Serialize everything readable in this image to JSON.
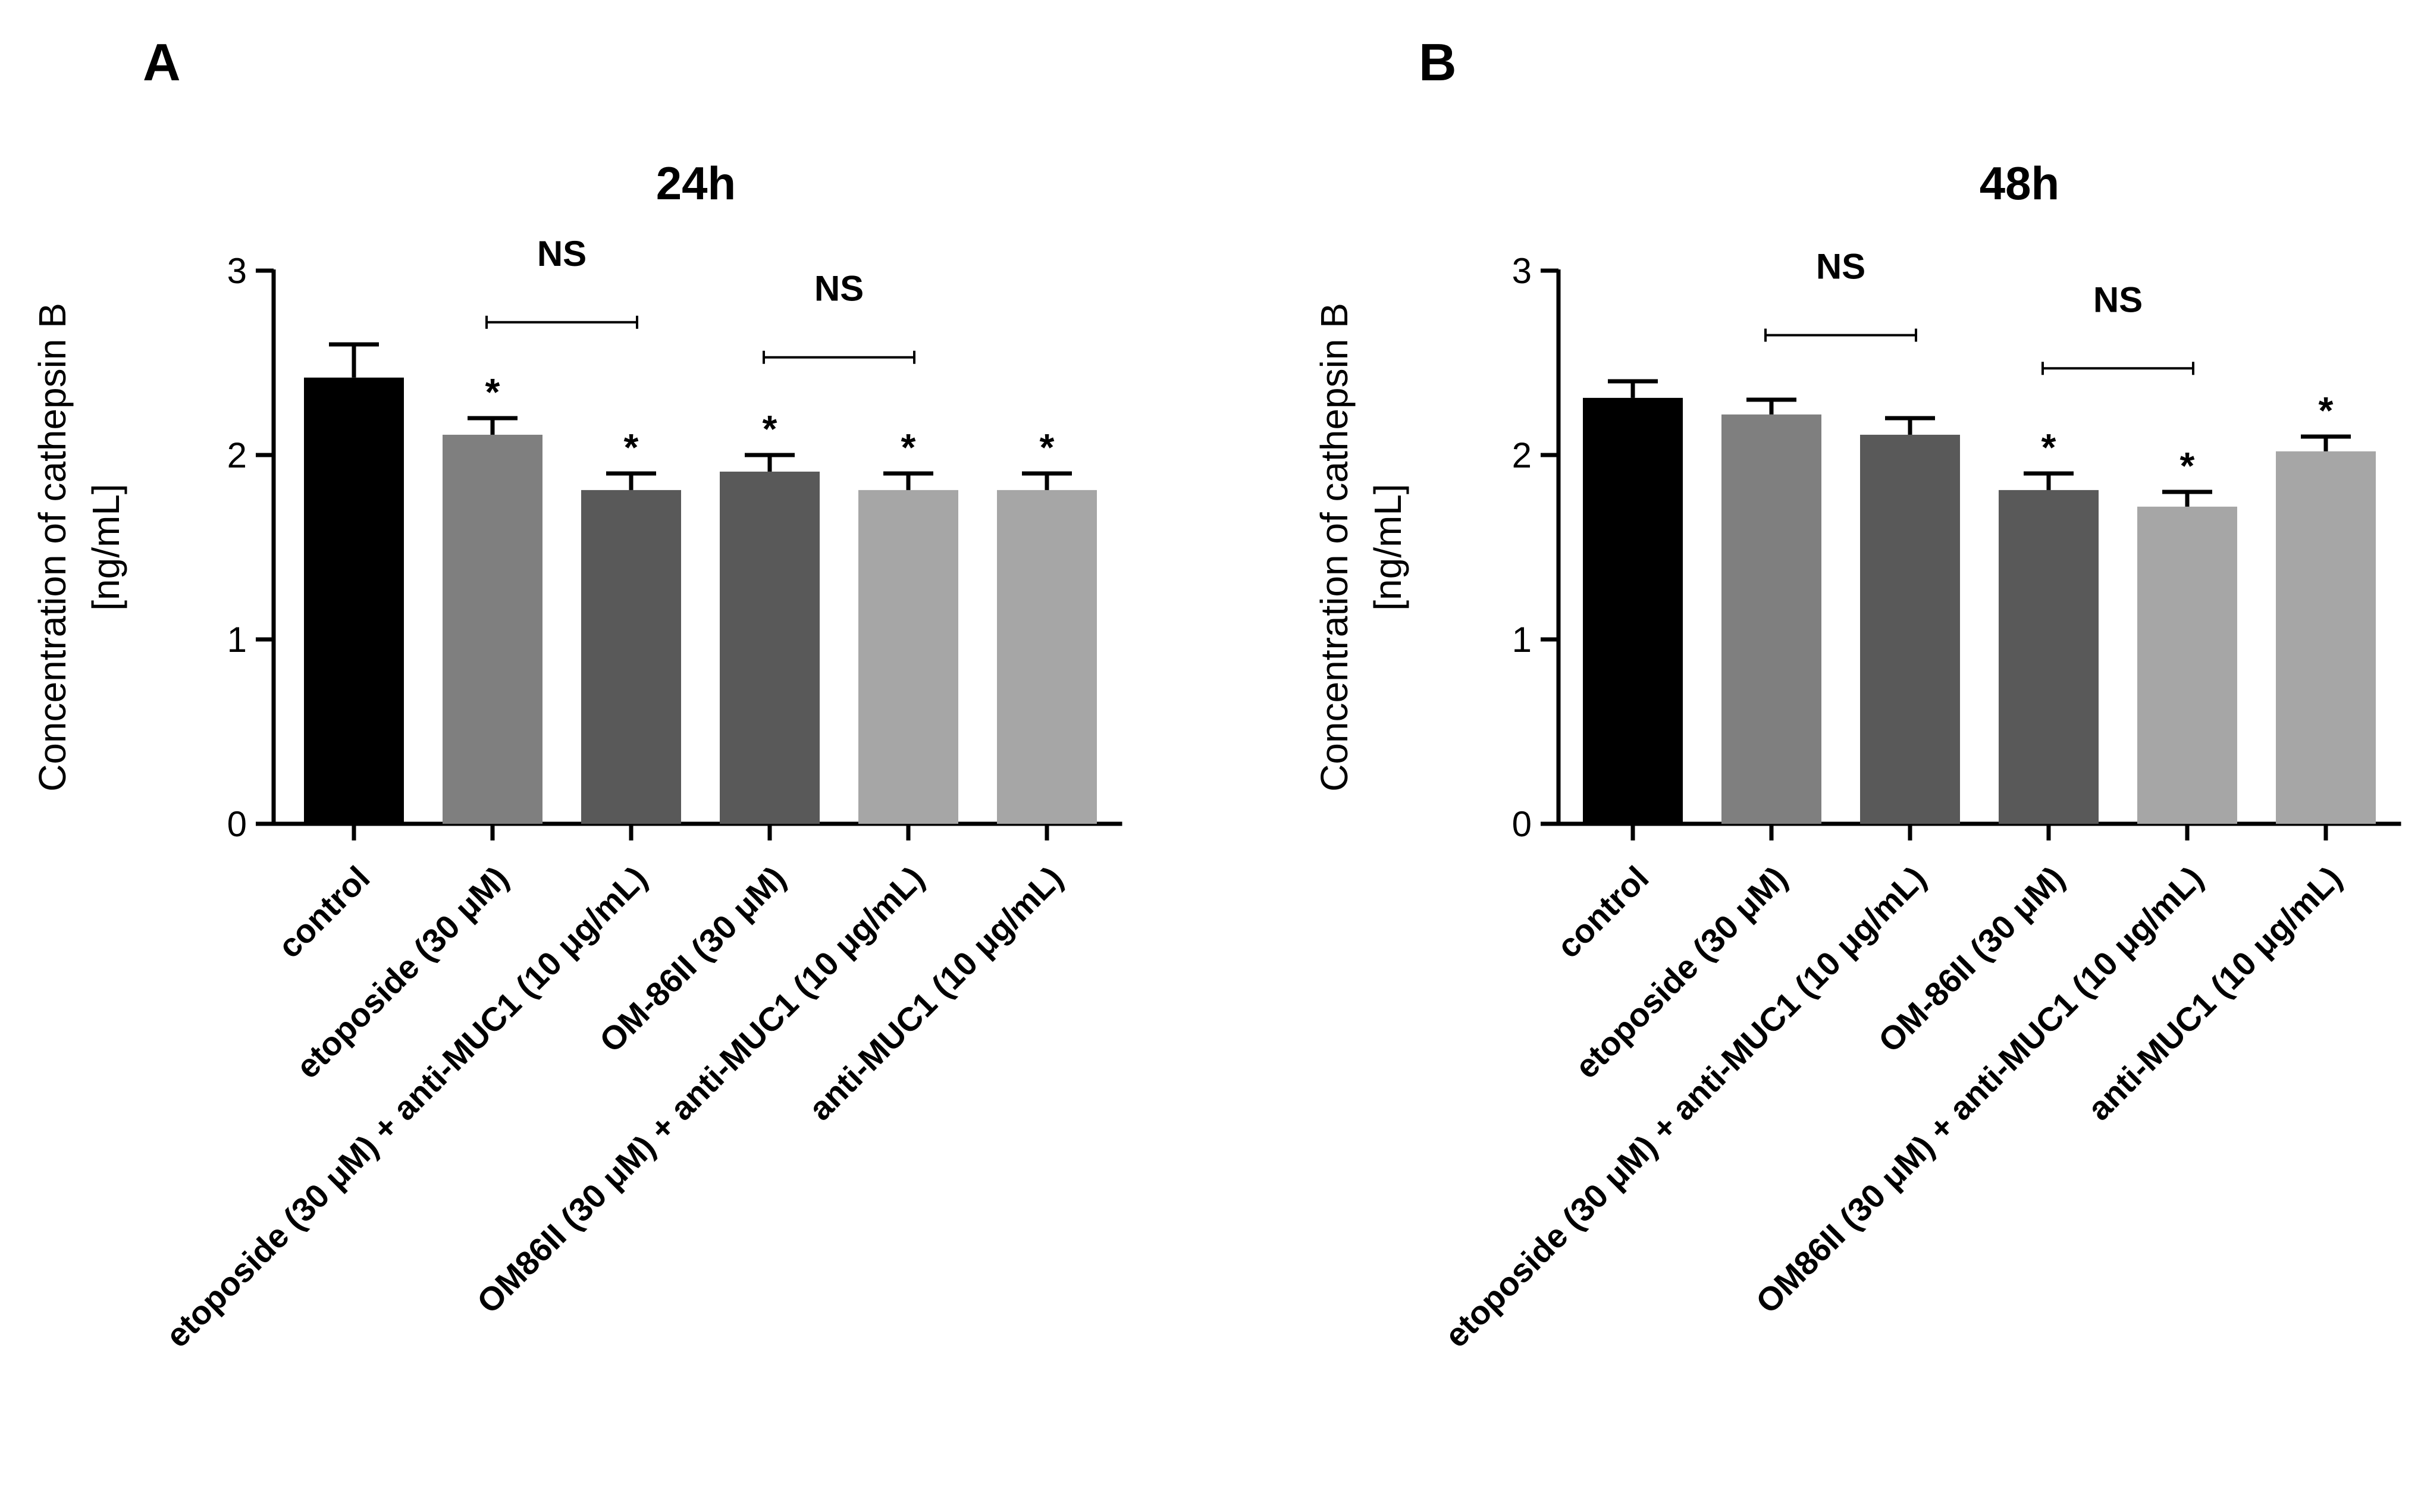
{
  "panels": [
    {
      "letter": "A"
    },
    {
      "letter": "B"
    }
  ],
  "chart_data": [
    {
      "type": "bar",
      "title": "24h",
      "xlabel": "",
      "ylabel": "Concentration of cathepsin B\n[ng/mL]",
      "ylabel_lines": [
        "Concentration of cathepsin B",
        "[ng/mL]"
      ],
      "ylim": [
        0,
        3
      ],
      "yticks": [
        "0",
        "1",
        "2",
        "3"
      ],
      "ytick_values": [
        0,
        1,
        2,
        3
      ],
      "grid": false,
      "legend": "none",
      "categories": [
        "control",
        "etoposide (30  μM)",
        "etoposide (30  μM) + anti-MUC1 (10  μg/mL)",
        "OM-86II (30  μM)",
        "OM86II (30  μM) + anti-MUC1 (10  μg/mL)",
        "anti-MUC1 (10  μg/mL)"
      ],
      "values": [
        2.42,
        2.11,
        1.81,
        1.91,
        1.81,
        1.81
      ],
      "errors": [
        0.18,
        0.09,
        0.09,
        0.09,
        0.09,
        0.09
      ],
      "colors": [
        "#000000",
        "#7f7f7f",
        "#595959",
        "#595959",
        "#a6a6a6",
        "#a6a6a6"
      ],
      "significance": [
        "",
        "*",
        "*",
        "*",
        "*",
        "*"
      ],
      "brackets": [
        {
          "from": 1,
          "to": 2,
          "label": "NS",
          "level": 2.72
        },
        {
          "from": 3,
          "to": 4,
          "label": "NS",
          "level": 2.53
        }
      ]
    },
    {
      "type": "bar",
      "title": "48h",
      "xlabel": "",
      "ylabel": "Concentration of cathepsin B\n[ng/mL]",
      "ylabel_lines": [
        "Concentration of cathepsin B",
        "[ng/mL]"
      ],
      "ylim": [
        0,
        3
      ],
      "yticks": [
        "0",
        "1",
        "2",
        "3"
      ],
      "ytick_values": [
        0,
        1,
        2,
        3
      ],
      "grid": false,
      "legend": "none",
      "categories": [
        "control",
        "etoposide (30  μM)",
        "etoposide (30  μM) + anti-MUC1 (10  μg/mL)",
        "OM-86II (30  μM)",
        "OM86II (30  μM) + anti-MUC1 (10  μg/mL)",
        "anti-MUC1 (10  μg/mL)"
      ],
      "values": [
        2.31,
        2.22,
        2.11,
        1.81,
        1.72,
        2.02
      ],
      "errors": [
        0.09,
        0.08,
        0.09,
        0.09,
        0.08,
        0.08
      ],
      "colors": [
        "#000000",
        "#7f7f7f",
        "#595959",
        "#595959",
        "#a6a6a6",
        "#a6a6a6"
      ],
      "significance": [
        "",
        "",
        "",
        "*",
        "*",
        "*"
      ],
      "brackets": [
        {
          "from": 1,
          "to": 2,
          "label": "NS",
          "level": 2.65
        },
        {
          "from": 3,
          "to": 4,
          "label": "NS",
          "level": 2.47
        }
      ]
    }
  ]
}
